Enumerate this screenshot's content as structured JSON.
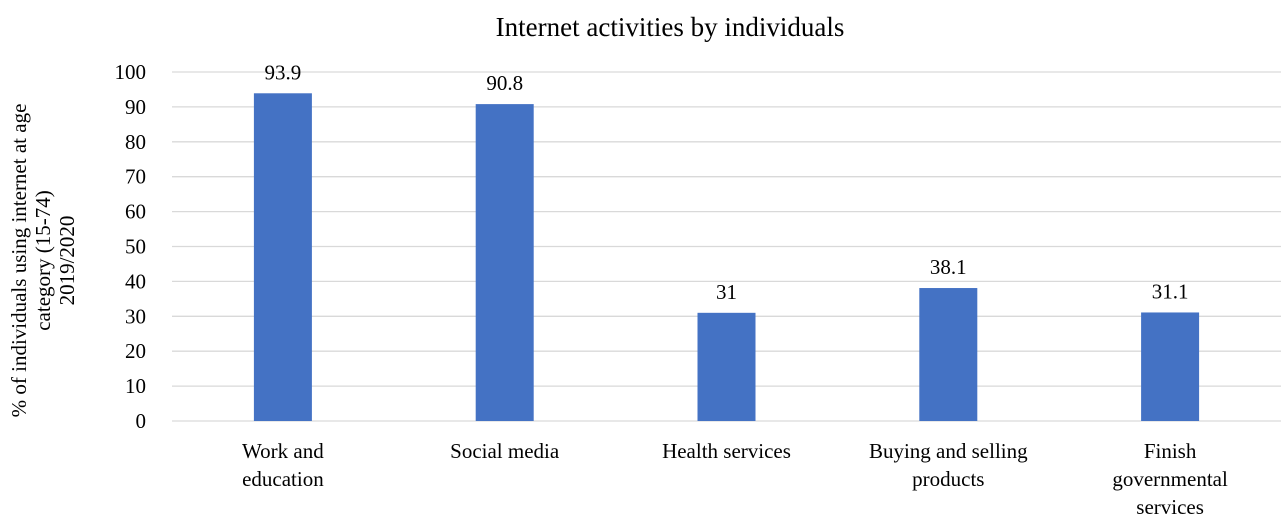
{
  "chart_data": {
    "type": "bar",
    "title": "Internet activities by individuals",
    "ylabel": [
      "% of individuals using internet at age",
      "category (15-74)",
      "2019/2020"
    ],
    "xlabel": "",
    "categories": [
      [
        "Work and",
        "education"
      ],
      [
        "Social media"
      ],
      [
        "Health services"
      ],
      [
        "Buying and selling",
        "products"
      ],
      [
        "Finish",
        "governmental",
        "services"
      ]
    ],
    "values": [
      93.9,
      90.8,
      31,
      38.1,
      31.1
    ],
    "data_labels": [
      "93.9",
      "90.8",
      "31",
      "38.1",
      "31.1"
    ],
    "ylim": [
      0,
      100
    ],
    "yticks": [
      "0",
      "10",
      "20",
      "30",
      "40",
      "50",
      "60",
      "70",
      "80",
      "90",
      "100"
    ],
    "grid": true,
    "legend": "none",
    "colors": {
      "bar": "#4472C4",
      "grid": "#D9D9D9",
      "axis": "#D9D9D9",
      "text": "#000000"
    }
  }
}
